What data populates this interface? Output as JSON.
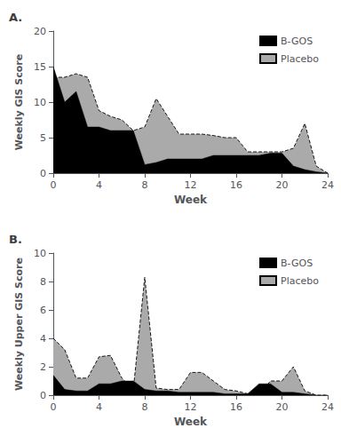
{
  "chart_data": [
    {
      "type": "area",
      "title": "A.",
      "xlabel": "Week",
      "ylabel": "Weekly GIS Score",
      "xlim": [
        0,
        24
      ],
      "ylim": [
        0,
        20
      ],
      "xticks": [
        0,
        4,
        8,
        12,
        16,
        20,
        24
      ],
      "yticks": [
        0,
        5,
        10,
        15,
        20
      ],
      "grid": false,
      "legend": "upper right",
      "x": [
        0,
        1,
        2,
        3,
        4,
        5,
        6,
        7,
        8,
        9,
        10,
        11,
        12,
        13,
        14,
        15,
        16,
        17,
        18,
        19,
        20,
        21,
        22,
        23,
        24
      ],
      "series": [
        {
          "name": "B-GOS",
          "color": "#000000",
          "line_style": "solid",
          "values": [
            15,
            10,
            11.5,
            6.5,
            6.5,
            6.0,
            6.0,
            6.0,
            1.2,
            1.5,
            2.0,
            2.0,
            2.0,
            2.0,
            2.5,
            2.5,
            2.5,
            2.5,
            2.5,
            2.8,
            2.8,
            1.0,
            0.5,
            0.2,
            0
          ]
        },
        {
          "name": "Placebo",
          "color": "#aaaaaa",
          "line_style": "dashed",
          "values": [
            13.5,
            13.5,
            14.0,
            13.5,
            8.8,
            8.0,
            7.5,
            6.0,
            6.5,
            10.5,
            8.0,
            5.5,
            5.5,
            5.5,
            5.3,
            5.0,
            5.0,
            3.0,
            3.0,
            3.0,
            3.0,
            3.5,
            7.0,
            1.0,
            0
          ]
        }
      ]
    },
    {
      "type": "area",
      "title": "B.",
      "xlabel": "Week",
      "ylabel": "Weekly Upper GIS Score",
      "xlim": [
        0,
        24
      ],
      "ylim": [
        0,
        10
      ],
      "xticks": [
        0,
        4,
        8,
        12,
        16,
        20,
        24
      ],
      "yticks": [
        0,
        2,
        4,
        6,
        8,
        10
      ],
      "grid": false,
      "legend": "upper right",
      "x": [
        0,
        1,
        2,
        3,
        4,
        5,
        6,
        7,
        8,
        9,
        10,
        11,
        12,
        13,
        14,
        15,
        16,
        17,
        18,
        19,
        20,
        21,
        22,
        23,
        24
      ],
      "series": [
        {
          "name": "B-GOS",
          "color": "#000000",
          "line_style": "solid",
          "values": [
            1.4,
            0.4,
            0.3,
            0.3,
            0.8,
            0.8,
            1.0,
            1.0,
            0.4,
            0.3,
            0.3,
            0.2,
            0.2,
            0.2,
            0.2,
            0.1,
            0.1,
            0.1,
            0.8,
            0.8,
            0.2,
            0.2,
            0.1,
            0.0,
            0
          ]
        },
        {
          "name": "Placebo",
          "color": "#aaaaaa",
          "line_style": "dashed",
          "values": [
            4.0,
            3.2,
            1.2,
            1.2,
            2.7,
            2.8,
            1.2,
            0.4,
            8.3,
            0.5,
            0.4,
            0.4,
            1.6,
            1.6,
            1.0,
            0.4,
            0.3,
            0.1,
            0.1,
            1.0,
            1.0,
            2.0,
            0.3,
            0.0,
            0
          ]
        }
      ]
    }
  ]
}
